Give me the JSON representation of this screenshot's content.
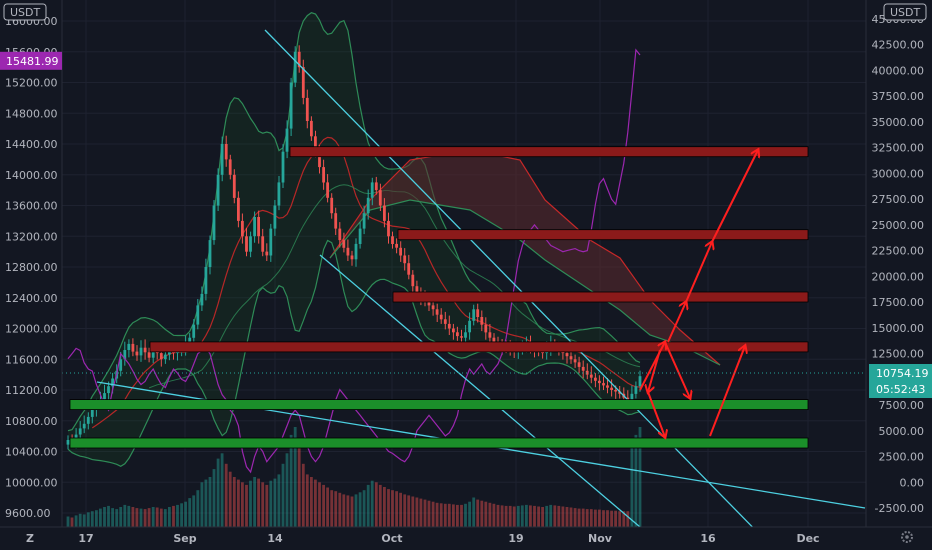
{
  "chart_data": {
    "type": "candlestick",
    "left_axis": {
      "unit": "USDT",
      "ticks": [
        "16000.00",
        "15600.00",
        "15200.00",
        "14800.00",
        "14400.00",
        "14000.00",
        "13600.00",
        "13200.00",
        "12800.00",
        "12400.00",
        "12000.00",
        "11600.00",
        "11200.00",
        "10800.00",
        "10400.00",
        "10000.00",
        "9600.00"
      ],
      "ylim": [
        9500,
        16200
      ],
      "badge": "15481.99",
      "badge_color": "#9c27b0"
    },
    "right_axis": {
      "unit": "USDT",
      "ticks": [
        "45000.00",
        "42500.00",
        "40000.00",
        "37500.00",
        "35000.00",
        "32500.00",
        "30000.00",
        "27500.00",
        "25000.00",
        "22500.00",
        "20000.00",
        "17500.00",
        "15000.00",
        "12500.00",
        "10000.00",
        "7500.00",
        "5000.00",
        "2500.00",
        "0.00",
        "-2500.00"
      ],
      "ylim": [
        -3500,
        46500
      ],
      "price_badge": "10754.19",
      "timer_badge": "05:52:43",
      "badge_color": "#26a69a"
    },
    "x_axis": {
      "ticks": [
        "17",
        "Sep",
        "14",
        "Oct",
        "19",
        "Nov",
        "16",
        "Dec"
      ],
      "footer_left": "Z"
    },
    "candle_series": {
      "up_color": "#26a69a",
      "down_color": "#ef5350",
      "close": [
        10550,
        10520,
        10620,
        10700,
        10760,
        10850,
        10950,
        11000,
        11080,
        11160,
        11250,
        11350,
        11450,
        11600,
        11720,
        11800,
        11700,
        11650,
        11750,
        11690,
        11620,
        11700,
        11680,
        11600,
        11660,
        11720,
        11680,
        11700,
        11720,
        11800,
        11880,
        12050,
        12300,
        12450,
        12800,
        13150,
        13600,
        14000,
        14400,
        14200,
        14000,
        13700,
        13400,
        13200,
        13000,
        13200,
        13450,
        13200,
        13000,
        12950,
        13300,
        13600,
        13900,
        14300,
        14600,
        15200,
        15600,
        15400,
        15000,
        14700,
        14500,
        14300,
        14100,
        13900,
        13700,
        13500,
        13300,
        13150,
        13050,
        12950,
        12900,
        13100,
        13300,
        13500,
        13700,
        13900,
        13800,
        13600,
        13400,
        13200,
        13100,
        13050,
        12950,
        12850,
        12700,
        12550,
        12450,
        12400,
        12350,
        12300,
        12250,
        12180,
        12120,
        12060,
        12000,
        11950,
        11900,
        11880,
        11950,
        12100,
        12250,
        12150,
        12050,
        11950,
        11880,
        11820,
        11780,
        11750,
        11740,
        11720,
        11700,
        11720,
        11760,
        11800,
        11760,
        11720,
        11700,
        11680,
        11740,
        11800,
        11760,
        11720,
        11680,
        11640,
        11600,
        11560,
        11500,
        11450,
        11400,
        11360,
        11320,
        11290,
        11260,
        11230,
        11200,
        11180,
        11150,
        11100,
        11060,
        11150,
        11250,
        11380
      ],
      "volume": [
        20,
        18,
        22,
        25,
        24,
        28,
        30,
        32,
        35,
        38,
        40,
        36,
        34,
        38,
        42,
        40,
        38,
        36,
        35,
        34,
        36,
        38,
        37,
        35,
        34,
        38,
        40,
        42,
        45,
        48,
        55,
        60,
        70,
        85,
        90,
        95,
        110,
        130,
        140,
        120,
        105,
        95,
        90,
        85,
        80,
        88,
        95,
        92,
        85,
        80,
        88,
        92,
        100,
        120,
        140,
        175,
        190,
        150,
        120,
        100,
        95,
        90,
        85,
        80,
        75,
        70,
        68,
        65,
        62,
        60,
        58,
        62,
        66,
        70,
        80,
        88,
        85,
        80,
        76,
        72,
        70,
        68,
        65,
        62,
        60,
        58,
        56,
        54,
        52,
        50,
        48,
        46,
        45,
        44,
        44,
        43,
        42,
        42,
        44,
        48,
        56,
        52,
        50,
        48,
        46,
        44,
        42,
        41,
        40,
        40,
        39,
        40,
        41,
        42,
        41,
        40,
        39,
        38,
        40,
        42,
        41,
        40,
        39,
        38,
        37,
        36,
        35,
        35,
        34,
        34,
        33,
        33,
        32,
        32,
        31,
        31,
        30,
        30,
        30,
        160,
        175,
        190
      ]
    },
    "oscillator": {
      "name": "",
      "color": "#9c27b0",
      "values": [
        12000,
        12500,
        13000,
        12800,
        11600,
        11000,
        10800,
        9500,
        8500,
        7500,
        7000,
        9000,
        10500,
        12500,
        12000,
        11500,
        10800,
        10000,
        9500,
        9800,
        10500,
        11000,
        10200,
        9500,
        9200,
        10200,
        11000,
        10600,
        10000,
        9800,
        10500,
        11500,
        12500,
        12800,
        13000,
        12500,
        11000,
        9500,
        8500,
        8000,
        7000,
        6500,
        5500,
        3000,
        1500,
        1000,
        2500,
        3500,
        3000,
        2000,
        2500,
        3000,
        3500,
        4500,
        5500,
        6500,
        7000,
        6500,
        5000,
        3500,
        2500,
        2000,
        2500,
        3500,
        5000,
        6500,
        8000,
        9000,
        8500,
        8000,
        7500,
        7000,
        6500,
        6000,
        5500,
        5000,
        4500,
        4000,
        3500,
        3000,
        2800,
        2500,
        2200,
        2000,
        2500,
        3500,
        5000,
        5500,
        6000,
        6500,
        6000,
        5500,
        5000,
        4500,
        4800,
        5500,
        6500,
        8500,
        10000,
        11000,
        10500,
        11000,
        11500,
        10800,
        10500,
        11000,
        11500,
        12500,
        14000,
        16500,
        19000,
        21500,
        23000,
        24000,
        24500,
        25000,
        24500,
        24000,
        23500,
        23000,
        22800,
        22600,
        22400,
        22500,
        22600,
        22700,
        22500,
        22400,
        22500,
        24500,
        27000,
        29000,
        29500,
        28500,
        27500,
        27000,
        29000,
        31000,
        34000,
        38000,
        42000,
        41500
      ]
    },
    "overlays": {
      "bb_line_color": "#2e8b57",
      "bb_fill_color": "#1b5e20",
      "ma_color": "#c62828",
      "cloud_color": "#5d2a2e",
      "cloud_edge_color": "#c62828",
      "trend_color": "#4dd0e1",
      "resistance_color": "#8b1a1a",
      "support_color": "#1b8f2a",
      "arrow_color": "#ff1f1f"
    },
    "levels": {
      "resistance": [
        14300,
        13220,
        12410,
        11760
      ],
      "support": [
        11010,
        10510
      ]
    }
  }
}
